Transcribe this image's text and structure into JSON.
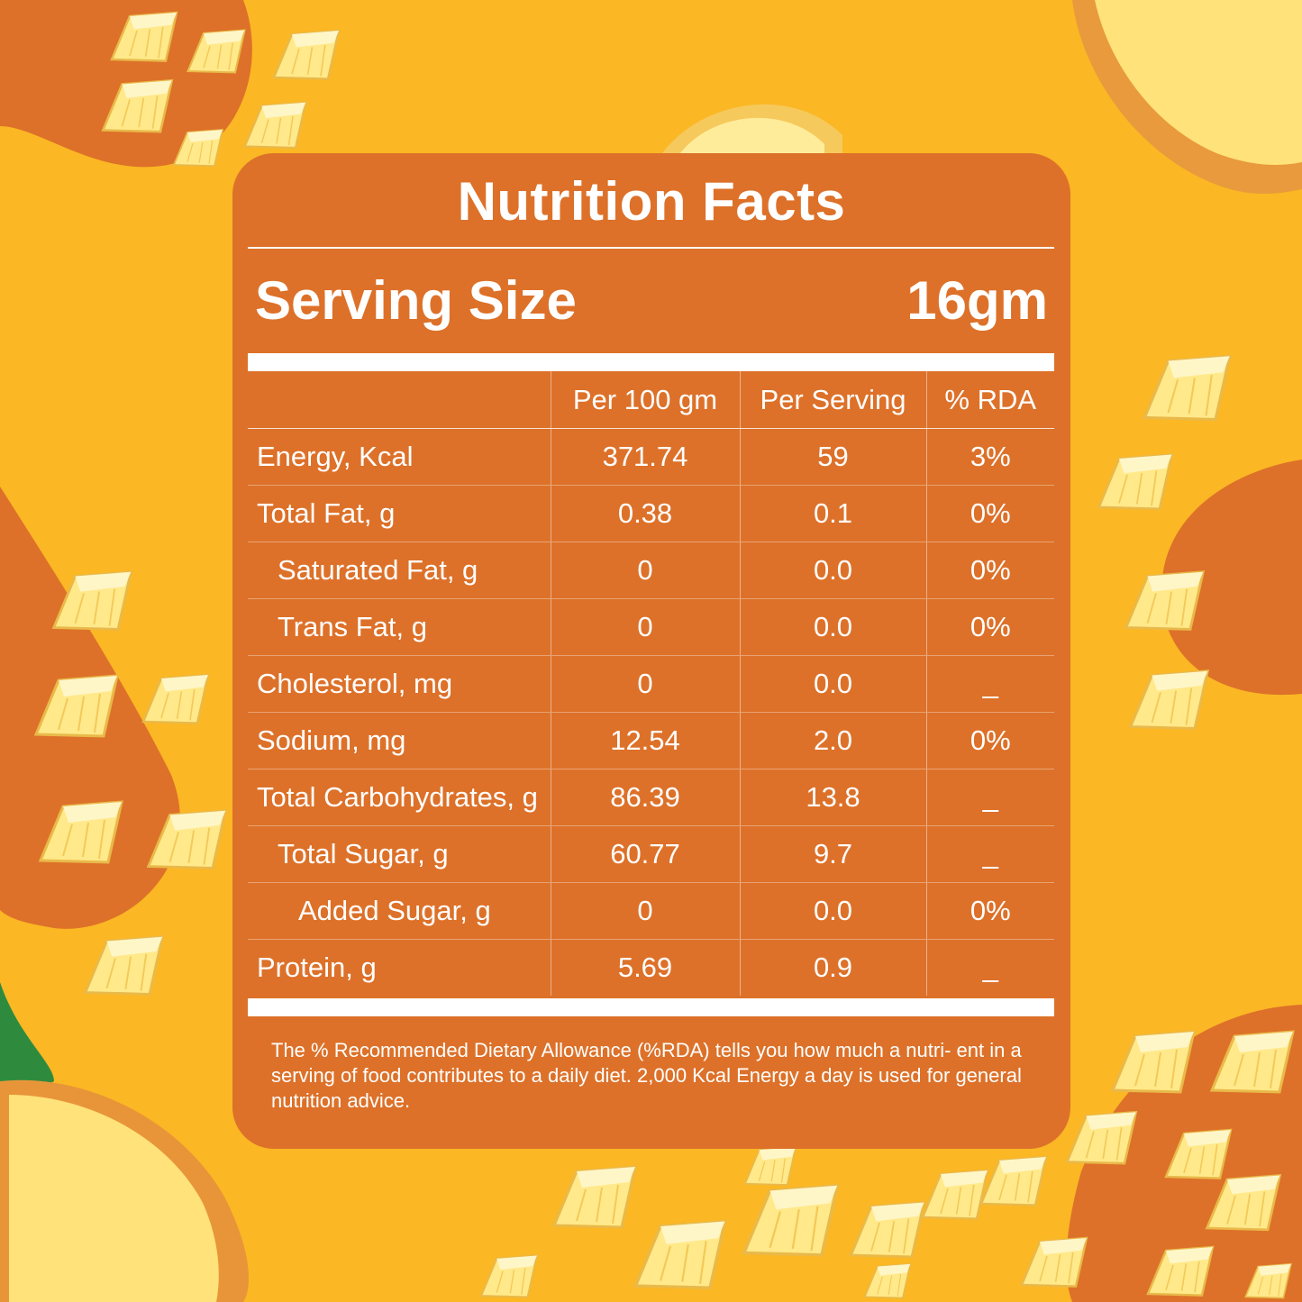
{
  "panel": {
    "title": "Nutrition Facts",
    "serving_size_label": "Serving Size",
    "serving_size_value": "16gm",
    "background_color": "#DD7129"
  },
  "page": {
    "background_color": "#FBB724",
    "decoration": "pineapple-chunks-illustration"
  },
  "table": {
    "headers": [
      "",
      "Per 100 gm",
      "Per Serving",
      "% RDA"
    ],
    "rows": [
      {
        "nutrient": "Energy, Kcal",
        "per_100g": "371.74",
        "per_serving": "59",
        "rda": "3%"
      },
      {
        "nutrient": "Total Fat, g",
        "per_100g": "0.38",
        "per_serving": "0.1",
        "rda": "0%"
      },
      {
        "nutrient": "Saturated Fat, g",
        "per_100g": "0",
        "per_serving": "0.0",
        "rda": "0%"
      },
      {
        "nutrient": "Trans Fat, g",
        "per_100g": "0",
        "per_serving": "0.0",
        "rda": "0%"
      },
      {
        "nutrient": "Cholesterol, mg",
        "per_100g": "0",
        "per_serving": "0.0",
        "rda": "_"
      },
      {
        "nutrient": "Sodium, mg",
        "per_100g": "12.54",
        "per_serving": "2.0",
        "rda": "0%"
      },
      {
        "nutrient": "Total Carbohydrates, g",
        "per_100g": "86.39",
        "per_serving": "13.8",
        "rda": "_"
      },
      {
        "nutrient": "Total Sugar, g",
        "per_100g": "60.77",
        "per_serving": "9.7",
        "rda": "_"
      },
      {
        "nutrient": "Added Sugar, g",
        "per_100g": "0",
        "per_serving": "0.0",
        "rda": "0%"
      },
      {
        "nutrient": "Protein, g",
        "per_100g": "5.69",
        "per_serving": "0.9",
        "rda": "_"
      }
    ]
  },
  "footnote": "The % Recommended Dietary Allowance (%RDA) tells you how much a nutri- ent in a serving of food contributes to a daily diet. 2,000 Kcal Energy a day is used for general nutrition advice."
}
